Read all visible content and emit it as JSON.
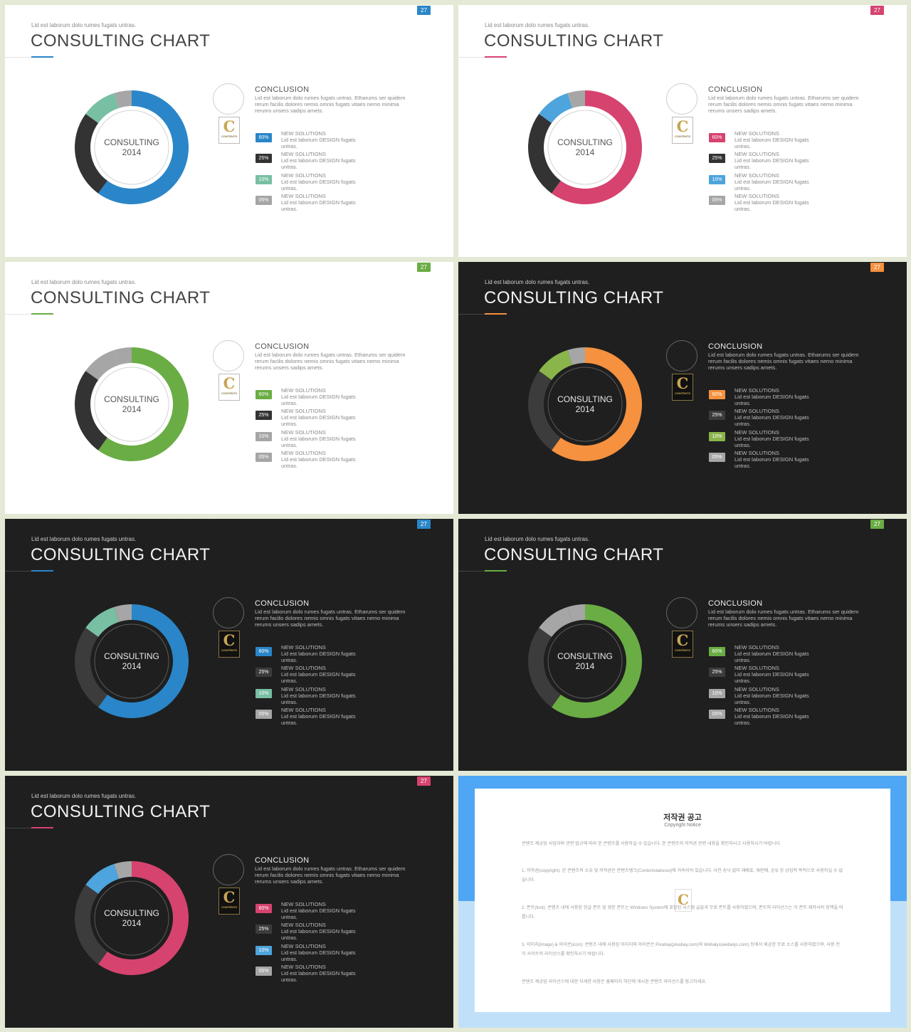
{
  "deck": {
    "page_number": "27",
    "subtitle": "Lid est laborum dolo rumes fugats untras.",
    "title": "CONSULTING CHART",
    "center_label_line1": "CONSULTING",
    "center_label_line2": "2014",
    "logo_letter": "C",
    "logo_word": "CONTENTS",
    "conclusion_title": "CONCLUSION",
    "conclusion_text": "Lid est laborum dolo rumes fugats untras. Etharums ser quidem rerum facilis dolores nemis omnis fugats vitaes nemo minima rerums unsers sadips amets.",
    "legend_title": "NEW SOLUTIONS",
    "legend_text": "Lid est laborum DESIGN fugats untras."
  },
  "slides": [
    {
      "theme": "light",
      "accent": "#2a86c8",
      "second": "#78bfa3",
      "badge_colors": [
        "#2a86c8",
        "#333333",
        "#78bfa3",
        "#a6a6a6"
      ]
    },
    {
      "theme": "light",
      "accent": "#d6436f",
      "second": "#4ea4dc",
      "badge_colors": [
        "#d6436f",
        "#333333",
        "#4ea4dc",
        "#a6a6a6"
      ]
    },
    {
      "theme": "light",
      "accent": "#6aad44",
      "second": "#a6a6a6",
      "badge_colors": [
        "#6aad44",
        "#333333",
        "#a6a6a6",
        "#a6a6a6"
      ]
    },
    {
      "theme": "dark",
      "accent": "#f5913f",
      "second": "#8ab54a",
      "badge_colors": [
        "#f5913f",
        "#3c3c3c",
        "#8ab54a",
        "#a6a6a6"
      ]
    },
    {
      "theme": "dark",
      "accent": "#2a86c8",
      "second": "#78bfa3",
      "badge_colors": [
        "#2a86c8",
        "#3c3c3c",
        "#78bfa3",
        "#a6a6a6"
      ]
    },
    {
      "theme": "dark",
      "accent": "#6aad44",
      "second": "#a6a6a6",
      "badge_colors": [
        "#6aad44",
        "#3c3c3c",
        "#a6a6a6",
        "#a6a6a6"
      ]
    },
    {
      "theme": "dark",
      "accent": "#d6436f",
      "second": "#4ea4dc",
      "badge_colors": [
        "#d6436f",
        "#3c3c3c",
        "#4ea4dc",
        "#a6a6a6"
      ]
    }
  ],
  "chart_data": {
    "type": "pie",
    "title": "CONSULTING CHART",
    "categories": [
      "NEW SOLUTIONS",
      "NEW SOLUTIONS",
      "NEW SOLUTIONS",
      "NEW SOLUTIONS"
    ],
    "values": [
      60,
      25,
      10,
      5
    ],
    "labels": [
      "60%",
      "25%",
      "10%",
      "05%"
    ],
    "center_label": "CONSULTING 2014",
    "legend_placement": "right"
  },
  "notice": {
    "title": "저작권 공고",
    "subtitle": "Copyright Notice",
    "paragraphs": [
      "콘텐츠 제공업 사업자와 관련 법규에 따라 본 콘텐츠를 사용하실 수 있습니다. 본 콘텐츠의 저작권 관련 내용을 확인하시고 사용하시기 바랍니다.",
      "1. 저작권(copyright): 본 콘텐츠의 소유 및 저작권은 콘텐츠뱅크(Contentstakeout)에 귀속되어 있습니다. 사전 승낙 없이 재배포, 재판매, 공유 등 상업적 목적으로 사용하실 수 없습니다.",
      "2. 폰트(font): 콘텐츠 내에 사용된 한글 폰트 및 영문 폰트는 Windows System에 포함된 시스템 글꼴과 무료 폰트를 사용하였으며, 폰트의 라이선스는 각 폰트 제작사의 정책을 따릅니다.",
      "3. 이미지(image) & 아이콘(icon): 콘텐츠 내에 사용된 이미지와 아이콘은 Pixabay(pixabay.com)와 Webalys(webalys.com) 등에서 제공한 무료 소스를 사용하였으며, 사용 전 각 사이트의 라이선스를 확인하시기 바랍니다.",
      "콘텐츠 제공업 라이선스에 대한 자세한 사항은 홈페이지 하단에 게시된 콘텐츠 라이선스를 참고하세요."
    ]
  }
}
